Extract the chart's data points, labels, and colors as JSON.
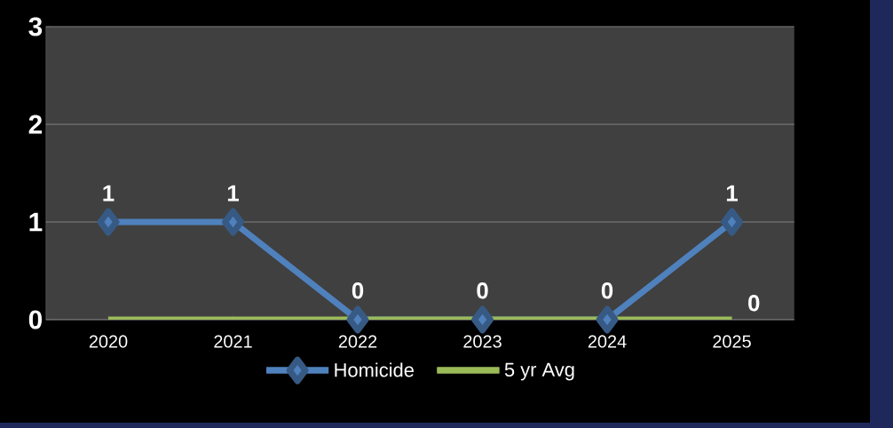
{
  "chart_data": {
    "type": "line",
    "categories": [
      "2020",
      "2021",
      "2022",
      "2023",
      "2024",
      "2025"
    ],
    "series": [
      {
        "name": "Homicide",
        "color": "#4f81bd",
        "marker": "diamond",
        "values": [
          1,
          1,
          0,
          0,
          0,
          1
        ],
        "value_labels": [
          "1",
          "1",
          "0",
          "0",
          "0",
          "1"
        ]
      },
      {
        "name": "5 yr Avg",
        "color": "#9bbb59",
        "marker": "none",
        "values": [
          0,
          0,
          0,
          0,
          0,
          0
        ],
        "value_labels": [
          null,
          null,
          null,
          null,
          null,
          "0"
        ]
      }
    ],
    "ylim": [
      0,
      3
    ],
    "yticks": [
      0,
      1,
      2,
      3
    ],
    "grid": "y",
    "legend": "bottom"
  }
}
